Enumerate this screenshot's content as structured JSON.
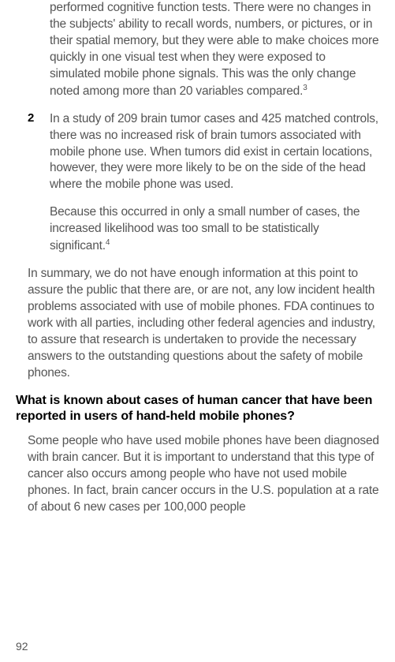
{
  "item1": {
    "text": "performed cognitive function tests. There were no changes in the subjects' ability to recall words, numbers, or pictures, or in their spatial memory, but they were able to make choices more quickly in one visual test when they were exposed to simulated mobile phone signals. This was the only change noted among more than 20 variables compared.",
    "footnote": "3"
  },
  "item2": {
    "number": "2",
    "textA": "In a study of 209 brain tumor cases and 425 matched controls, there was no increased risk of brain tumors associated with mobile phone use. When tumors did exist in certain locations, however, they were more likely to be on the side of the head where the mobile phone was used.",
    "textB": "Because this occurred in only a small number of cases, the increased likelihood was too small to be statistically significant.",
    "footnote": "4"
  },
  "summary": "In summary, we do not have enough information at this point to assure the public that there are, or are not, any low incident health problems associated with use of mobile phones. FDA continues to work with all parties, including other federal agencies and industry, to assure that research is undertaken to provide the necessary answers to the outstanding questions about the safety of mobile phones.",
  "heading": "What is known about cases of human cancer that have been reported in users of hand-held mobile phones?",
  "bodyAfterHeading": "Some people who have used mobile phones have been diagnosed with brain cancer. But it is important to understand that this type of cancer also occurs among people who have not used mobile phones. In fact, brain cancer occurs in the U.S. population at a rate of about 6 new cases per 100,000 people",
  "pageNumber": "92",
  "colors": {
    "textGray": "#555555",
    "black": "#000000",
    "background": "#ffffff"
  },
  "fonts": {
    "bodySize": 15.5,
    "headingSize": 16,
    "footnoteSize": 10,
    "pageNumSize": 14
  }
}
